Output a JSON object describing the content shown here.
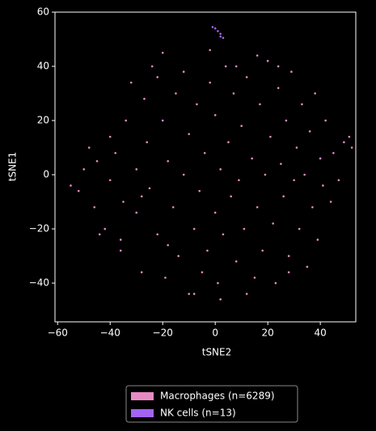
{
  "chart_data": {
    "type": "scatter",
    "x_label": "tSNE2",
    "y_label": "tSNE1",
    "xlim": [
      -61,
      53.5
    ],
    "ylim": [
      -54.3,
      60
    ],
    "xticks": [
      {
        "value": -60,
        "label": "−60"
      },
      {
        "value": -40,
        "label": "−40"
      },
      {
        "value": -20,
        "label": "−20"
      },
      0,
      20,
      40
    ],
    "yticks": [
      {
        "value": -40,
        "label": "−40"
      },
      {
        "value": -20,
        "label": "−20"
      },
      0,
      20,
      40,
      60
    ],
    "series": [
      {
        "name": "Macrophages (n=6289)",
        "color": "#e78ac3",
        "x": [
          -55,
          -52,
          -50,
          -48,
          -46,
          -45,
          -42,
          -40,
          -40,
          -38,
          -36,
          -35,
          -34,
          -32,
          -30,
          -30,
          -28,
          -27,
          -26,
          -25,
          -24,
          -22,
          -20,
          -20,
          -19,
          -18,
          -16,
          -15,
          -14,
          -12,
          -12,
          -10,
          -10,
          -8,
          -7,
          -6,
          -5,
          -4,
          -3,
          -2,
          0,
          0,
          1,
          2,
          3,
          4,
          5,
          6,
          7,
          8,
          9,
          10,
          11,
          12,
          14,
          15,
          16,
          17,
          18,
          19,
          20,
          21,
          22,
          23,
          24,
          25,
          26,
          27,
          28,
          29,
          30,
          31,
          32,
          33,
          34,
          35,
          36,
          37,
          38,
          39,
          40,
          41,
          42,
          44,
          45,
          47,
          49,
          51,
          52,
          -44,
          -36,
          -28,
          -18,
          -8,
          2,
          12,
          28,
          -2,
          8,
          -22,
          16,
          24
        ],
        "values": [
          -4,
          -6,
          2,
          10,
          -12,
          5,
          -20,
          14,
          -2,
          8,
          -28,
          -10,
          20,
          34,
          -14,
          2,
          -36,
          28,
          12,
          -5,
          40,
          -22,
          45,
          20,
          -38,
          5,
          -12,
          30,
          -30,
          38,
          0,
          -44,
          15,
          -20,
          26,
          -6,
          -36,
          8,
          -28,
          34,
          -14,
          22,
          -40,
          2,
          -22,
          40,
          12,
          -8,
          30,
          -32,
          -2,
          18,
          -20,
          36,
          6,
          -38,
          -12,
          26,
          -28,
          0,
          42,
          14,
          -18,
          -40,
          32,
          4,
          -8,
          20,
          -30,
          38,
          -2,
          10,
          -20,
          26,
          0,
          -34,
          16,
          -12,
          30,
          -24,
          6,
          -4,
          20,
          -10,
          8,
          -2,
          12,
          14,
          10,
          -22,
          -24,
          -8,
          -26,
          -44,
          -46,
          -44,
          -36,
          46,
          40,
          36,
          44,
          40
        ]
      },
      {
        "name": "NK cells (n=13)",
        "color": "#a463f2",
        "x": [
          -1,
          0,
          1,
          2,
          2,
          3
        ],
        "values": [
          54.5,
          54,
          53,
          52,
          51,
          50.5
        ]
      }
    ]
  }
}
